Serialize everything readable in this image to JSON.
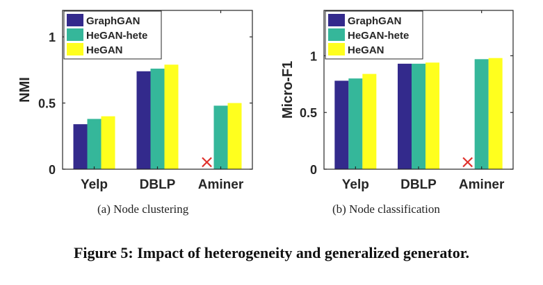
{
  "chart_data": [
    {
      "type": "bar",
      "categories": [
        "Yelp",
        "DBLP",
        "Aminer"
      ],
      "series": [
        {
          "name": "GraphGAN",
          "values": [
            0.34,
            0.74,
            null
          ]
        },
        {
          "name": "HeGAN-hete",
          "values": [
            0.38,
            0.76,
            0.48
          ]
        },
        {
          "name": "HeGAN",
          "values": [
            0.4,
            0.79,
            0.5
          ]
        }
      ],
      "missing_marker": "×",
      "ylabel": "NMI",
      "ylim": [
        0,
        1.2
      ],
      "yticks": [
        "0",
        "0.5",
        "1"
      ],
      "legend": "top-left",
      "grid": false,
      "subcaption": "(a)  Node clustering"
    },
    {
      "type": "bar",
      "categories": [
        "Yelp",
        "DBLP",
        "Aminer"
      ],
      "series": [
        {
          "name": "GraphGAN",
          "values": [
            0.78,
            0.93,
            null
          ]
        },
        {
          "name": "HeGAN-hete",
          "values": [
            0.8,
            0.93,
            0.97
          ]
        },
        {
          "name": "HeGAN",
          "values": [
            0.84,
            0.94,
            0.98
          ]
        }
      ],
      "missing_marker": "×",
      "ylabel": "Micro-F1",
      "ylim": [
        0,
        1.4
      ],
      "yticks": [
        "0",
        "0.5",
        "1"
      ],
      "legend": "top-left",
      "grid": false,
      "subcaption": "(b)  Node classification"
    }
  ],
  "colors": {
    "GraphGAN": "#332a8c",
    "HeGAN-hete": "#35b79a",
    "HeGAN": "#ffff1e",
    "missing_marker": "#e0312c"
  },
  "caption": "Figure 5: Impact of heterogeneity and generalized generator."
}
